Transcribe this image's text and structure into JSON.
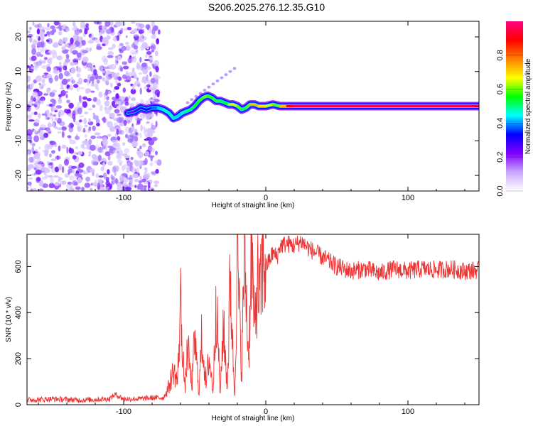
{
  "title": "S206.2025.276.12.35.G10",
  "chart_data": [
    {
      "type": "heatmap",
      "xlabel": "Height of straight line (km)",
      "ylabel": "Frequency (Hz)",
      "xlim": [
        -168,
        150
      ],
      "ylim": [
        -24.5,
        24.5
      ],
      "x_ticks": [
        -100,
        0,
        100
      ],
      "y_ticks": [
        -20,
        -10,
        0,
        10,
        20
      ],
      "colorbar": {
        "label": "Normalized spectral amplitude",
        "range": [
          0,
          1
        ],
        "ticks": [
          "0.0",
          "0.2",
          "0.4",
          "0.6",
          "0.8"
        ],
        "tick_values": [
          0.0,
          0.2,
          0.4,
          0.6,
          0.8
        ],
        "colormap": [
          "#ffffff",
          "#c9a8ff",
          "#8000ff",
          "#0000ff",
          "#00ffff",
          "#00ff00",
          "#ffff00",
          "#ff8000",
          "#ff0000",
          "#ff0080"
        ]
      },
      "ridge": {
        "x": [
          -97,
          -92,
          -88,
          -84,
          -80,
          -76,
          -72,
          -68,
          -65,
          -62,
          -59,
          -56,
          -53,
          -50,
          -47,
          -44,
          -41,
          -38,
          -35,
          -32,
          -29,
          -26,
          -23,
          -20,
          -17,
          -14,
          -11,
          -8,
          -5,
          -2,
          0,
          5,
          10,
          15,
          20,
          40,
          80,
          120,
          150
        ],
        "y": [
          -2,
          -1.5,
          -0.5,
          -1,
          -0.5,
          -0.5,
          -1,
          -2,
          -3.5,
          -3,
          -2,
          -1.5,
          -1,
          0,
          1.5,
          2.5,
          3,
          2.5,
          1.5,
          1.5,
          1,
          0.5,
          0.5,
          0,
          -1,
          -0.5,
          0.5,
          0.5,
          0,
          0,
          0,
          0.5,
          0,
          0,
          0,
          0,
          0,
          0,
          0
        ],
        "amplitude": [
          0.2,
          0.25,
          0.3,
          0.3,
          0.35,
          0.4,
          0.45,
          0.5,
          0.45,
          0.4,
          0.45,
          0.5,
          0.5,
          0.55,
          0.55,
          0.6,
          0.6,
          0.55,
          0.6,
          0.55,
          0.5,
          0.6,
          0.7,
          0.65,
          0.55,
          0.5,
          0.7,
          0.75,
          0.7,
          0.7,
          0.7,
          0.6,
          0.6,
          0.85,
          0.95,
          0.95,
          0.95,
          0.95,
          0.95
        ]
      },
      "noise_region_x": [
        -168,
        -75
      ]
    },
    {
      "type": "line",
      "xlabel": "Height of straight line (km)",
      "ylabel": "SNR (10 * v/v)",
      "xlim": [
        -168,
        150
      ],
      "ylim": [
        0,
        740
      ],
      "x_ticks": [
        -100,
        0,
        100
      ],
      "y_ticks": [
        0,
        200,
        400,
        600
      ],
      "color": "#ee3333",
      "x": [
        -168,
        -150,
        -130,
        -110,
        -106,
        -100,
        -90,
        -80,
        -72,
        -68,
        -65,
        -62,
        -60,
        -57,
        -55,
        -52,
        -50,
        -47,
        -45,
        -42,
        -40,
        -37,
        -35,
        -32,
        -30,
        -27,
        -25,
        -22,
        -20,
        -17,
        -15,
        -12,
        -10,
        -8,
        -6,
        -4,
        -2,
        0,
        2,
        5,
        8,
        10,
        15,
        20,
        25,
        30,
        35,
        40,
        45,
        50,
        60,
        70,
        80,
        90,
        100,
        110,
        120,
        130,
        140,
        150
      ],
      "y": [
        20,
        25,
        20,
        25,
        45,
        25,
        25,
        30,
        30,
        80,
        150,
        100,
        450,
        60,
        250,
        80,
        290,
        50,
        300,
        80,
        210,
        60,
        480,
        40,
        350,
        70,
        560,
        30,
        640,
        130,
        680,
        180,
        740,
        300,
        550,
        450,
        650,
        600,
        620,
        660,
        640,
        690,
        700,
        690,
        710,
        680,
        660,
        640,
        620,
        600,
        580,
        590,
        570,
        590,
        580,
        590,
        585,
        590,
        580,
        585
      ]
    }
  ]
}
